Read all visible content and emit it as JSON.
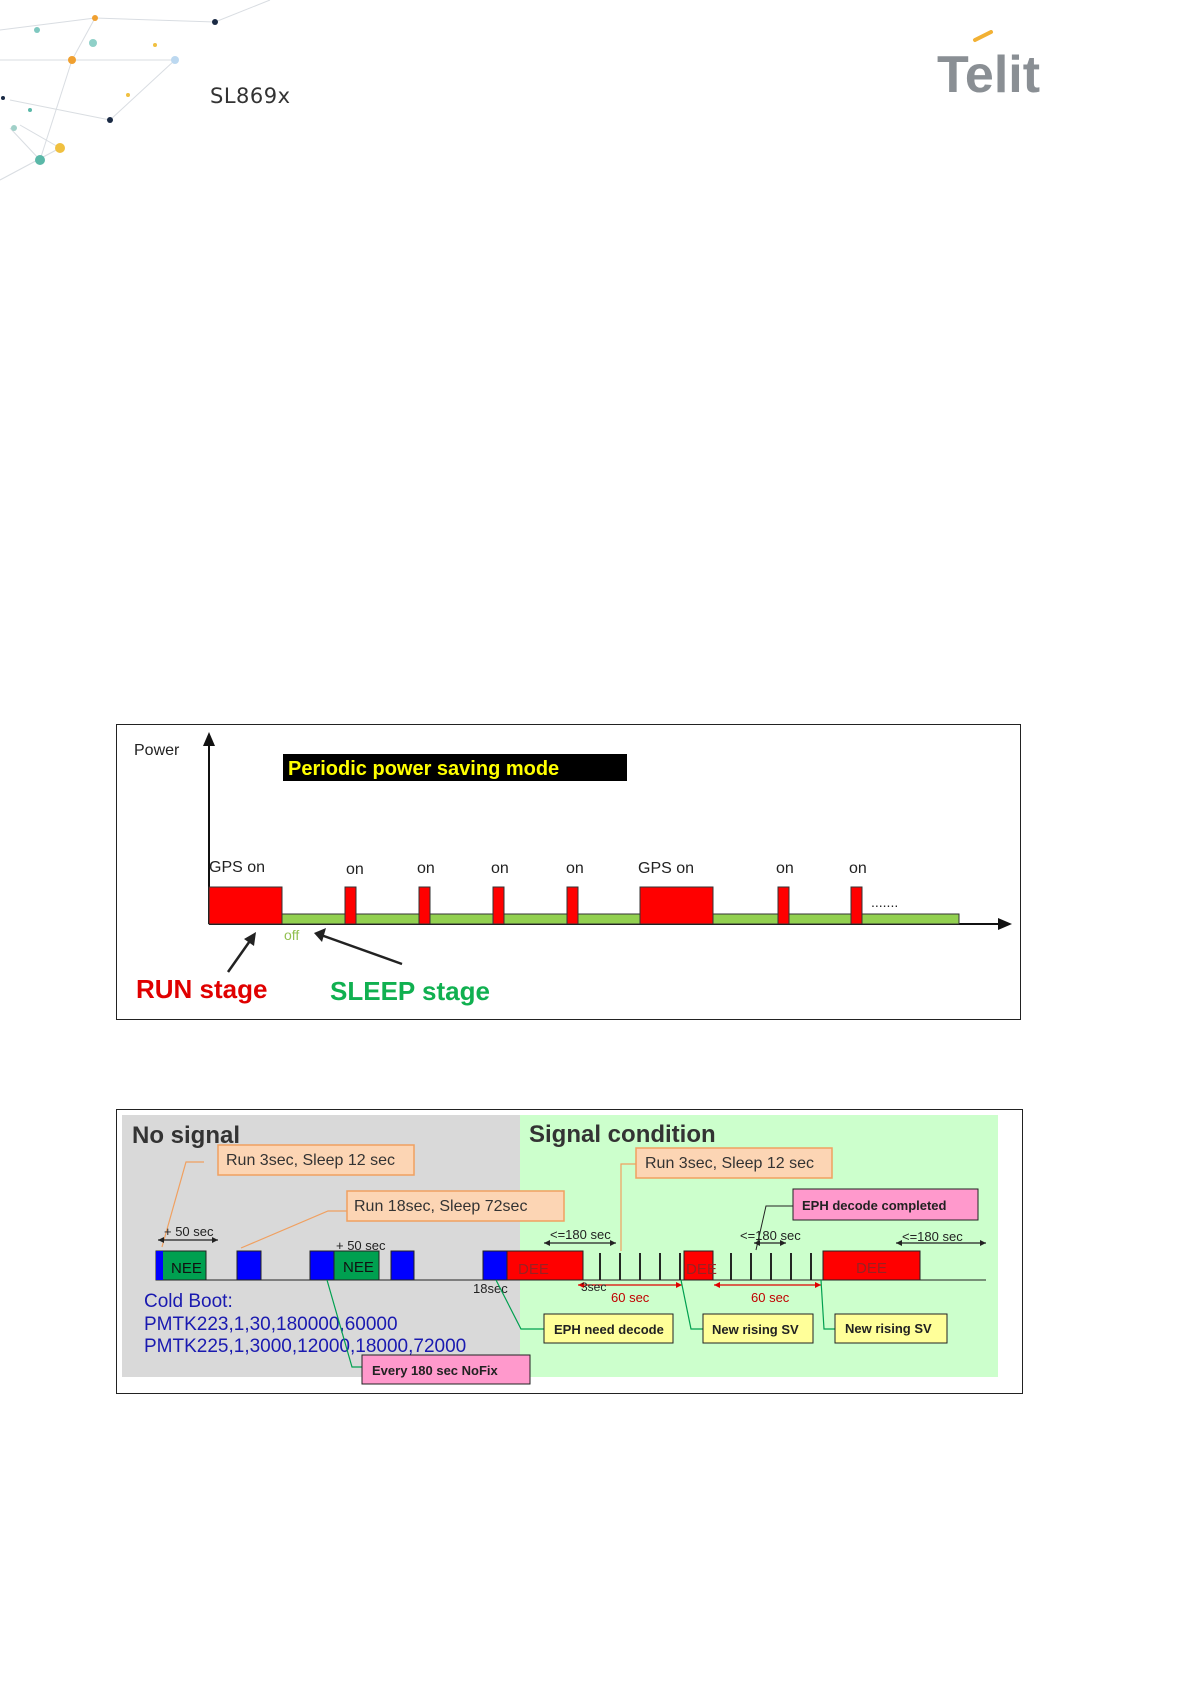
{
  "header": {
    "doc_code": "SL869x",
    "logo_text": "Telit"
  },
  "figure1": {
    "y_label": "Power",
    "title": "Periodic power saving mode",
    "pulse_labels": [
      "GPS on",
      "on",
      "on",
      "on",
      "on",
      "GPS on",
      "on",
      "on"
    ],
    "off_label": "off",
    "dots": ".......",
    "run_label": "RUN stage",
    "sleep_label": "SLEEP stage"
  },
  "figure2": {
    "no_signal": "No signal",
    "signal_condition": "Signal condition",
    "callout_run3_left": "Run 3sec, Sleep 12 sec",
    "callout_run18": "Run 18sec, Sleep 72sec",
    "callout_run3_right": "Run 3sec, Sleep 12 sec",
    "eph_completed": "EPH decode completed",
    "plus50_a": "+ 50 sec",
    "plus50_b": "+ 50 sec",
    "le180_a": "<=180 sec",
    "le180_b": "<=180 sec",
    "le180_c": "<=180 sec",
    "nee_a": "NEE",
    "nee_b": "NEE",
    "dee_a": "DEE",
    "dee_b": "DEE",
    "dee_c": "DEE",
    "sec18": "18sec",
    "sec3": "3sec",
    "sec60_a": "60 sec",
    "sec60_b": "60 sec",
    "cold_boot": "Cold Boot:",
    "pmtk223": "PMTK223,1,30,180000,60000",
    "pmtk225": "PMTK225,1,3000,12000,18000,72000",
    "every180": "Every 180 sec NoFix",
    "eph_need": "EPH need decode",
    "new_rising_a": "New rising SV",
    "new_rising_b": "New rising SV"
  }
}
